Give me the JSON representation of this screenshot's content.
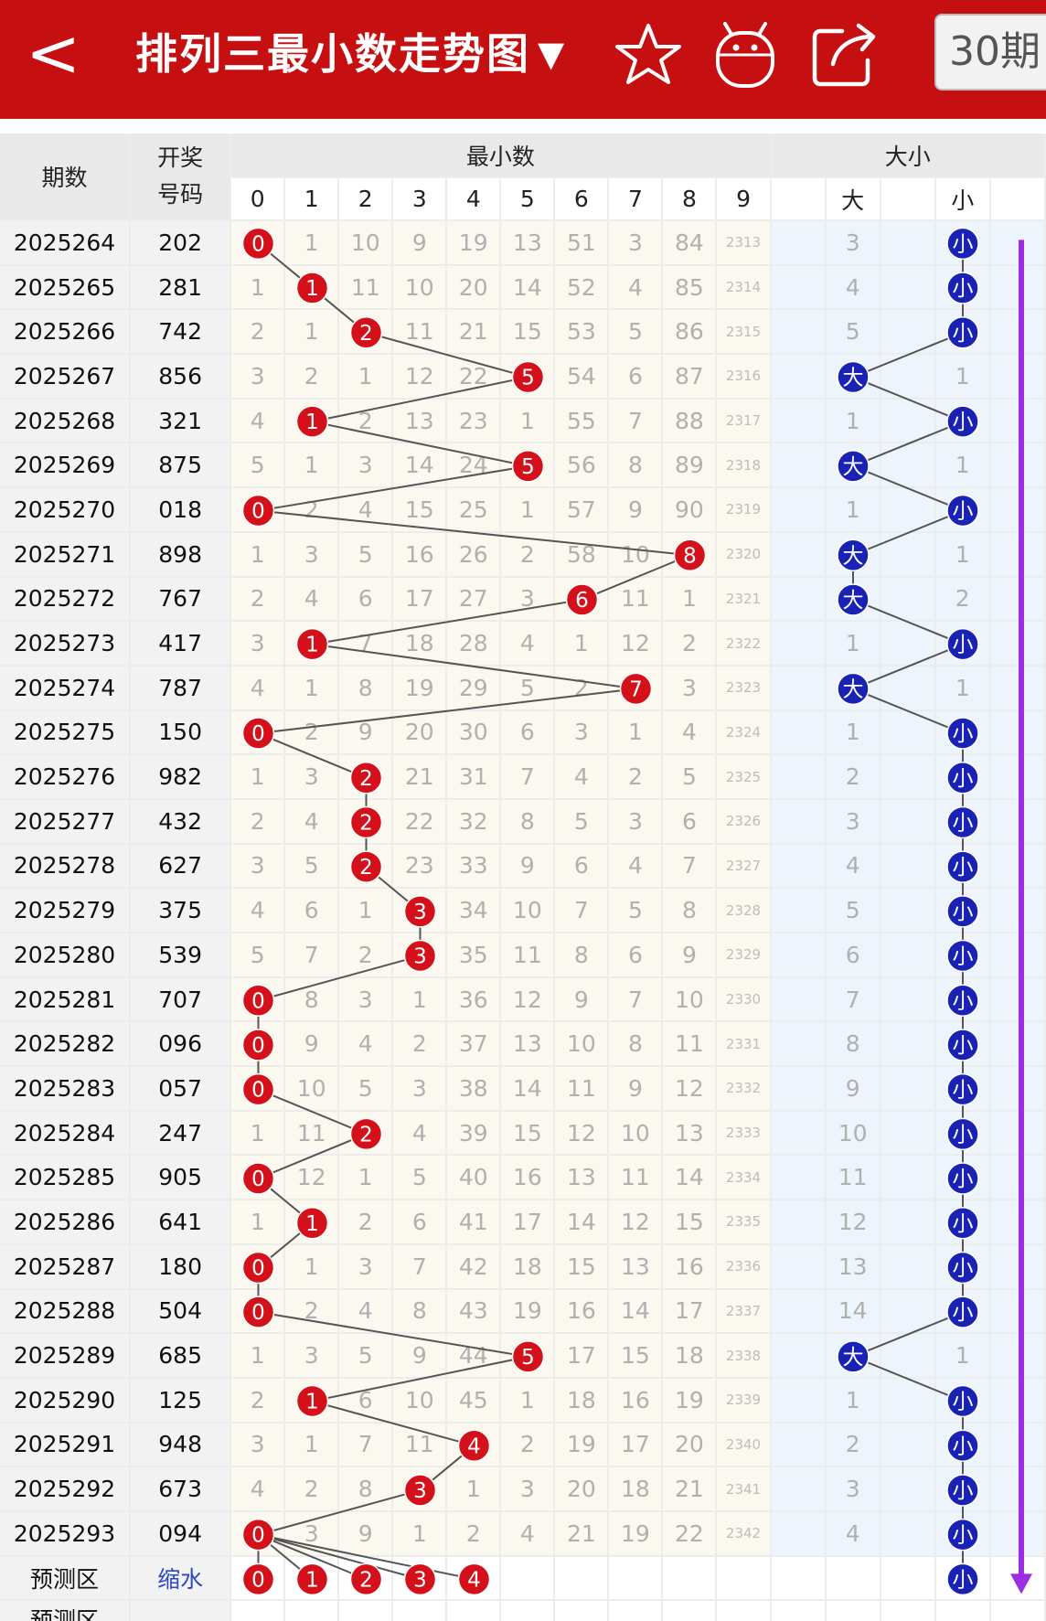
{
  "header": {
    "back_label": "<",
    "title": "排列三最小数走势图",
    "dropdown_caret": "▼",
    "icons": [
      "star-icon",
      "robot-icon",
      "share-icon"
    ],
    "period_button": "30期",
    "bg_color": "#c50f11"
  },
  "table": {
    "col_issue": "期数",
    "col_draw_line1": "开奖",
    "col_draw_line2": "号码",
    "group_min": "最小数",
    "min_digits": [
      "0",
      "1",
      "2",
      "3",
      "4",
      "5",
      "6",
      "7",
      "8",
      "9"
    ],
    "group_size": "大小",
    "size_big": "大",
    "size_small": "小",
    "rows": [
      {
        "issue": "2025264",
        "draw": "202",
        "cells": [
          "0",
          "1",
          "10",
          "9",
          "19",
          "13",
          "51",
          "3",
          "84",
          "2313"
        ],
        "min": 0,
        "big": "3",
        "small": "小",
        "size": "small"
      },
      {
        "issue": "2025265",
        "draw": "281",
        "cells": [
          "1",
          "1",
          "11",
          "10",
          "20",
          "14",
          "52",
          "4",
          "85",
          "2314"
        ],
        "min": 1,
        "big": "4",
        "small": "小",
        "size": "small"
      },
      {
        "issue": "2025266",
        "draw": "742",
        "cells": [
          "2",
          "1",
          "2",
          "11",
          "21",
          "15",
          "53",
          "5",
          "86",
          "2315"
        ],
        "min": 2,
        "big": "5",
        "small": "小",
        "size": "small"
      },
      {
        "issue": "2025267",
        "draw": "856",
        "cells": [
          "3",
          "2",
          "1",
          "12",
          "22",
          "5",
          "54",
          "6",
          "87",
          "2316"
        ],
        "min": 5,
        "big": "大",
        "small": "1",
        "size": "big"
      },
      {
        "issue": "2025268",
        "draw": "321",
        "cells": [
          "4",
          "1",
          "2",
          "13",
          "23",
          "1",
          "55",
          "7",
          "88",
          "2317"
        ],
        "min": 1,
        "big": "1",
        "small": "小",
        "size": "small"
      },
      {
        "issue": "2025269",
        "draw": "875",
        "cells": [
          "5",
          "1",
          "3",
          "14",
          "24",
          "5",
          "56",
          "8",
          "89",
          "2318"
        ],
        "min": 5,
        "big": "大",
        "small": "1",
        "size": "big"
      },
      {
        "issue": "2025270",
        "draw": "018",
        "cells": [
          "0",
          "2",
          "4",
          "15",
          "25",
          "1",
          "57",
          "9",
          "90",
          "2319"
        ],
        "min": 0,
        "big": "1",
        "small": "小",
        "size": "small"
      },
      {
        "issue": "2025271",
        "draw": "898",
        "cells": [
          "1",
          "3",
          "5",
          "16",
          "26",
          "2",
          "58",
          "10",
          "8",
          "2320"
        ],
        "min": 8,
        "big": "大",
        "small": "1",
        "size": "big"
      },
      {
        "issue": "2025272",
        "draw": "767",
        "cells": [
          "2",
          "4",
          "6",
          "17",
          "27",
          "3",
          "6",
          "11",
          "1",
          "2321"
        ],
        "min": 6,
        "big": "大",
        "small": "2",
        "size": "big"
      },
      {
        "issue": "2025273",
        "draw": "417",
        "cells": [
          "3",
          "1",
          "7",
          "18",
          "28",
          "4",
          "1",
          "12",
          "2",
          "2322"
        ],
        "min": 1,
        "big": "1",
        "small": "小",
        "size": "small"
      },
      {
        "issue": "2025274",
        "draw": "787",
        "cells": [
          "4",
          "1",
          "8",
          "19",
          "29",
          "5",
          "2",
          "7",
          "3",
          "2323"
        ],
        "min": 7,
        "big": "大",
        "small": "1",
        "size": "big"
      },
      {
        "issue": "2025275",
        "draw": "150",
        "cells": [
          "0",
          "2",
          "9",
          "20",
          "30",
          "6",
          "3",
          "1",
          "4",
          "2324"
        ],
        "min": 0,
        "big": "1",
        "small": "小",
        "size": "small"
      },
      {
        "issue": "2025276",
        "draw": "982",
        "cells": [
          "1",
          "3",
          "2",
          "21",
          "31",
          "7",
          "4",
          "2",
          "5",
          "2325"
        ],
        "min": 2,
        "big": "2",
        "small": "小",
        "size": "small"
      },
      {
        "issue": "2025277",
        "draw": "432",
        "cells": [
          "2",
          "4",
          "2",
          "22",
          "32",
          "8",
          "5",
          "3",
          "6",
          "2326"
        ],
        "min": 2,
        "big": "3",
        "small": "小",
        "size": "small"
      },
      {
        "issue": "2025278",
        "draw": "627",
        "cells": [
          "3",
          "5",
          "2",
          "23",
          "33",
          "9",
          "6",
          "4",
          "7",
          "2327"
        ],
        "min": 2,
        "big": "4",
        "small": "小",
        "size": "small"
      },
      {
        "issue": "2025279",
        "draw": "375",
        "cells": [
          "4",
          "6",
          "1",
          "3",
          "34",
          "10",
          "7",
          "5",
          "8",
          "2328"
        ],
        "min": 3,
        "big": "5",
        "small": "小",
        "size": "small"
      },
      {
        "issue": "2025280",
        "draw": "539",
        "cells": [
          "5",
          "7",
          "2",
          "3",
          "35",
          "11",
          "8",
          "6",
          "9",
          "2329"
        ],
        "min": 3,
        "big": "6",
        "small": "小",
        "size": "small"
      },
      {
        "issue": "2025281",
        "draw": "707",
        "cells": [
          "0",
          "8",
          "3",
          "1",
          "36",
          "12",
          "9",
          "7",
          "10",
          "2330"
        ],
        "min": 0,
        "big": "7",
        "small": "小",
        "size": "small"
      },
      {
        "issue": "2025282",
        "draw": "096",
        "cells": [
          "0",
          "9",
          "4",
          "2",
          "37",
          "13",
          "10",
          "8",
          "11",
          "2331"
        ],
        "min": 0,
        "big": "8",
        "small": "小",
        "size": "small"
      },
      {
        "issue": "2025283",
        "draw": "057",
        "cells": [
          "0",
          "10",
          "5",
          "3",
          "38",
          "14",
          "11",
          "9",
          "12",
          "2332"
        ],
        "min": 0,
        "big": "9",
        "small": "小",
        "size": "small"
      },
      {
        "issue": "2025284",
        "draw": "247",
        "cells": [
          "1",
          "11",
          "2",
          "4",
          "39",
          "15",
          "12",
          "10",
          "13",
          "2333"
        ],
        "min": 2,
        "big": "10",
        "small": "小",
        "size": "small"
      },
      {
        "issue": "2025285",
        "draw": "905",
        "cells": [
          "0",
          "12",
          "1",
          "5",
          "40",
          "16",
          "13",
          "11",
          "14",
          "2334"
        ],
        "min": 0,
        "big": "11",
        "small": "小",
        "size": "small"
      },
      {
        "issue": "2025286",
        "draw": "641",
        "cells": [
          "1",
          "1",
          "2",
          "6",
          "41",
          "17",
          "14",
          "12",
          "15",
          "2335"
        ],
        "min": 1,
        "big": "12",
        "small": "小",
        "size": "small"
      },
      {
        "issue": "2025287",
        "draw": "180",
        "cells": [
          "0",
          "1",
          "3",
          "7",
          "42",
          "18",
          "15",
          "13",
          "16",
          "2336"
        ],
        "min": 0,
        "big": "13",
        "small": "小",
        "size": "small"
      },
      {
        "issue": "2025288",
        "draw": "504",
        "cells": [
          "0",
          "2",
          "4",
          "8",
          "43",
          "19",
          "16",
          "14",
          "17",
          "2337"
        ],
        "min": 0,
        "big": "14",
        "small": "小",
        "size": "small"
      },
      {
        "issue": "2025289",
        "draw": "685",
        "cells": [
          "1",
          "3",
          "5",
          "9",
          "44",
          "5",
          "17",
          "15",
          "18",
          "2338"
        ],
        "min": 5,
        "big": "大",
        "small": "1",
        "size": "big"
      },
      {
        "issue": "2025290",
        "draw": "125",
        "cells": [
          "2",
          "1",
          "6",
          "10",
          "45",
          "1",
          "18",
          "16",
          "19",
          "2339"
        ],
        "min": 1,
        "big": "1",
        "small": "小",
        "size": "small"
      },
      {
        "issue": "2025291",
        "draw": "948",
        "cells": [
          "3",
          "1",
          "7",
          "11",
          "4",
          "2",
          "19",
          "17",
          "20",
          "2340"
        ],
        "min": 4,
        "big": "2",
        "small": "小",
        "size": "small"
      },
      {
        "issue": "2025292",
        "draw": "673",
        "cells": [
          "4",
          "2",
          "8",
          "3",
          "1",
          "3",
          "20",
          "18",
          "21",
          "2341"
        ],
        "min": 3,
        "big": "3",
        "small": "小",
        "size": "small"
      },
      {
        "issue": "2025293",
        "draw": "094",
        "cells": [
          "0",
          "3",
          "9",
          "1",
          "2",
          "4",
          "21",
          "19",
          "22",
          "2342"
        ],
        "min": 0,
        "big": "4",
        "small": "小",
        "size": "small"
      }
    ],
    "prediction": {
      "label": "预测区",
      "link": "缩水",
      "balls": [
        {
          "col": 0,
          "text": "0"
        },
        {
          "col": 1,
          "text": "1"
        },
        {
          "col": 2,
          "text": "2"
        },
        {
          "col": 3,
          "text": "3"
        },
        {
          "col": 4,
          "text": "4"
        }
      ],
      "size_ball": "小"
    },
    "prediction2_label": "预测区",
    "colors": {
      "red_ball": "#d4111a",
      "blue_ball": "#1a22b6",
      "trend_arrow": "#9a2ee0",
      "line": "#555555"
    }
  }
}
